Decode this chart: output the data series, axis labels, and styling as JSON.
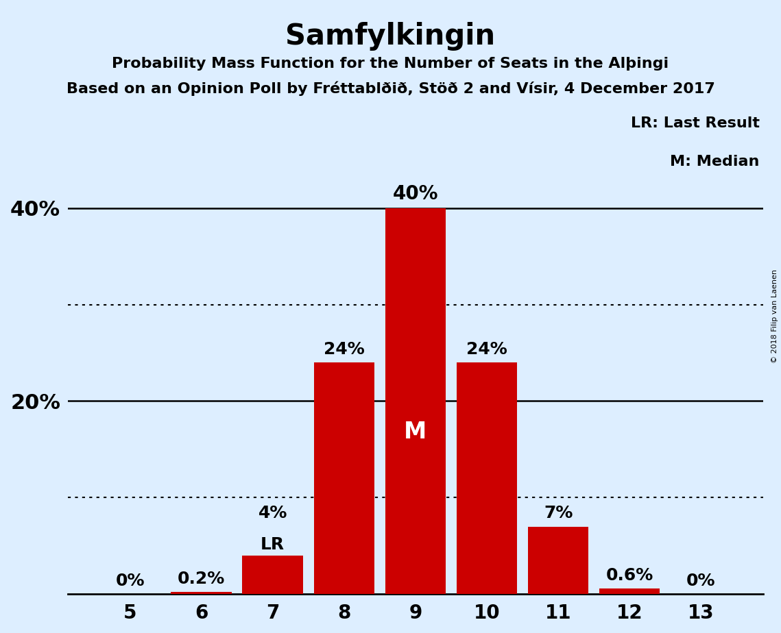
{
  "title": "Samfylkingin",
  "subtitle1_text": "Probability Mass Function for the Number of Seats in the Alþingi",
  "subtitle2_text": "Based on an Opinion Poll by Fréttablðið, Stöð 2 and Vísir, 4 December 2017",
  "categories": [
    5,
    6,
    7,
    8,
    9,
    10,
    11,
    12,
    13
  ],
  "values": [
    0.0,
    0.2,
    4.0,
    24.0,
    40.0,
    24.0,
    7.0,
    0.6,
    0.0
  ],
  "bar_color": "#CC0000",
  "background_color": "#ddeeff",
  "bar_labels": [
    "0%",
    "0.2%",
    "4%",
    "24%",
    "40%",
    "24%",
    "7%",
    "0.6%",
    "0%"
  ],
  "median_seat": 9,
  "last_result_seat": 7,
  "ylim_max": 50,
  "yticks": [
    20,
    40
  ],
  "ytick_labels": [
    "20%",
    "40%"
  ],
  "legend_lr": "LR: Last Result",
  "legend_m": "M: Median",
  "copyright": "© 2018 Filip van Laenen",
  "dotted_lines": [
    10,
    30
  ],
  "solid_lines": [
    20,
    40
  ]
}
